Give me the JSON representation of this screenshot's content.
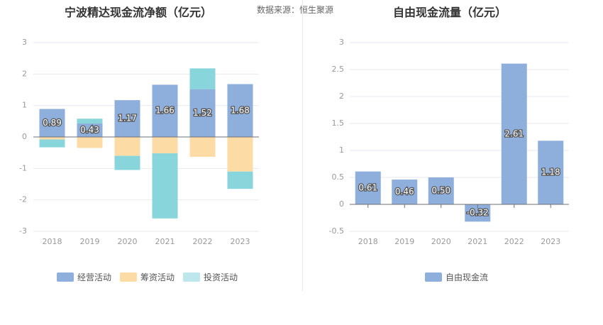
{
  "header": {
    "left_title": "宁波精达现金流净额（亿元）",
    "source": "数据来源：恒生聚源",
    "right_title": "自由现金流量（亿元）"
  },
  "colors": {
    "operating": "#8eaedc",
    "financing": "#fddba5",
    "investing": "#88d6db",
    "free_cash_flow": "#8eaedc",
    "grid": "#e6e9f0",
    "axis_text": "#999999"
  },
  "chart_data": [
    {
      "type": "bar",
      "stacked": true,
      "title": "宁波精达现金流净额（亿元）",
      "categories": [
        "2018",
        "2019",
        "2020",
        "2021",
        "2022",
        "2023"
      ],
      "ylim": [
        -3,
        3
      ],
      "yticks": [
        3,
        2,
        1,
        0,
        -1,
        -2,
        -3
      ],
      "series": [
        {
          "name": "经营活动",
          "key": "operating",
          "values": [
            0.89,
            0.43,
            1.17,
            1.66,
            1.52,
            1.68
          ],
          "labels": [
            "0.89",
            "0.43",
            "1.17",
            "1.66",
            "1.52",
            "1.68"
          ]
        },
        {
          "name": "筹资活动",
          "key": "financing",
          "values": [
            -0.08,
            -0.35,
            -0.6,
            -0.52,
            -0.63,
            -1.1
          ]
        },
        {
          "name": "投资活动",
          "key": "investing",
          "values": [
            -0.25,
            0.15,
            -0.45,
            -2.07,
            0.66,
            -0.55
          ]
        }
      ],
      "legend": [
        "经营活动",
        "筹资活动",
        "投资活动"
      ]
    },
    {
      "type": "bar",
      "title": "自由现金流量（亿元）",
      "categories": [
        "2018",
        "2019",
        "2020",
        "2021",
        "2022",
        "2023"
      ],
      "ylim": [
        -0.5,
        3
      ],
      "yticks": [
        "3",
        "2.5",
        "2",
        "1.5",
        "1",
        "0.5",
        "0",
        "-0.5"
      ],
      "series": [
        {
          "name": "自由现金流",
          "key": "free_cash_flow",
          "values": [
            0.61,
            0.46,
            0.5,
            -0.32,
            2.61,
            1.18
          ],
          "labels": [
            "0.61",
            "0.46",
            "0.50",
            "-0.32",
            "2.61",
            "1.18"
          ]
        }
      ],
      "legend": [
        "自由现金流"
      ]
    }
  ]
}
